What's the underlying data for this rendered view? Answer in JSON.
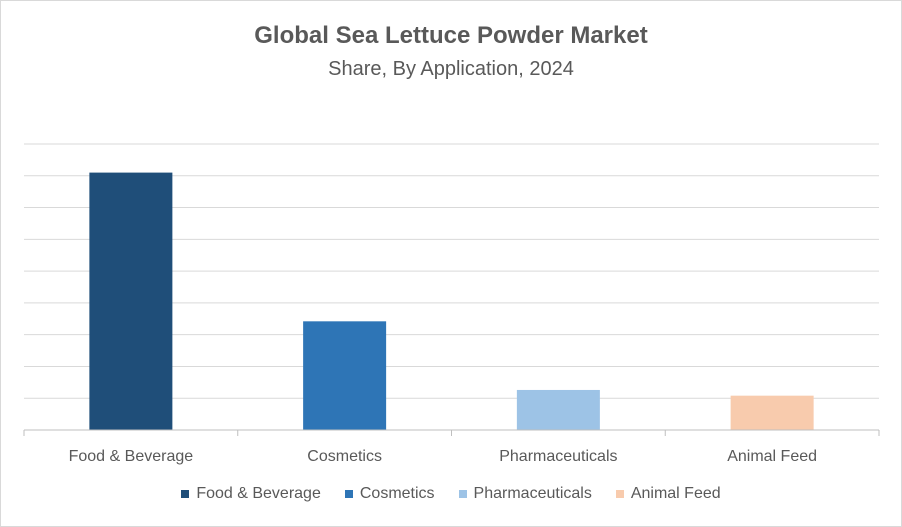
{
  "chart_data": {
    "type": "bar",
    "title": "Global Sea Lettuce Powder Market",
    "subtitle": "Share, By Application, 2024",
    "categories": [
      "Food & Beverage",
      "Cosmetics",
      "Pharmaceuticals",
      "Animal Feed"
    ],
    "values": [
      0.9,
      0.38,
      0.14,
      0.12
    ],
    "ylim": [
      0,
      1
    ],
    "grid": true,
    "legend_position": "bottom",
    "colors": [
      "#1f4e79",
      "#2e75b6",
      "#9dc3e6",
      "#f8cbad"
    ]
  }
}
